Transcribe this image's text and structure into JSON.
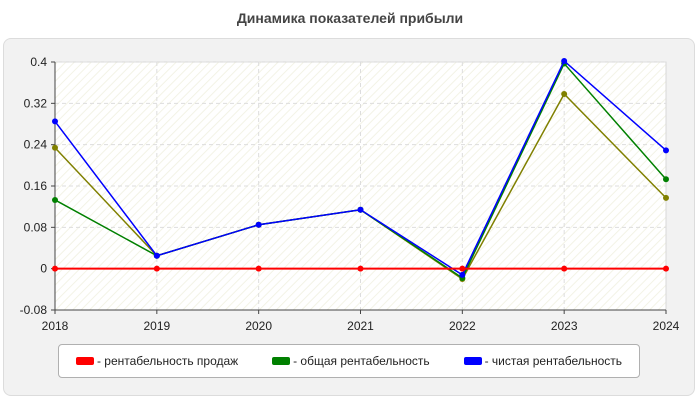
{
  "chart_data": {
    "type": "line",
    "title": "Динамика показателей прибыли",
    "xlabel": "",
    "ylabel": "",
    "categories": [
      "2018",
      "2019",
      "2020",
      "2021",
      "2022",
      "2023",
      "2024"
    ],
    "ylim": [
      -0.08,
      0.4
    ],
    "yticks": [
      "-0.08",
      "0",
      "0.08",
      "0.16",
      "0.24",
      "0.32",
      "0.4"
    ],
    "yticks_values": [
      -0.08,
      0,
      0.08,
      0.16,
      0.24,
      0.32,
      0.4
    ],
    "grid": true,
    "legend_position": "bottom",
    "series": [
      {
        "name": "- рентабельность продаж",
        "color": "#ff0000",
        "values": [
          0,
          0,
          0,
          0,
          0,
          0,
          0
        ]
      },
      {
        "name": "- общая рентабельность",
        "color": "#008000",
        "values": [
          0.133,
          0.025,
          0.085,
          0.114,
          -0.018,
          0.397,
          0.173
        ]
      },
      {
        "name": "- чистая рентабельность",
        "color": "#0000ff",
        "values": [
          0.285,
          0.025,
          0.085,
          0.114,
          -0.012,
          0.402,
          0.229
        ]
      },
      {
        "name": "",
        "color": "#808000",
        "values": [
          0.234,
          0.025,
          0.085,
          0.114,
          -0.02,
          0.338,
          0.137
        ]
      }
    ]
  }
}
